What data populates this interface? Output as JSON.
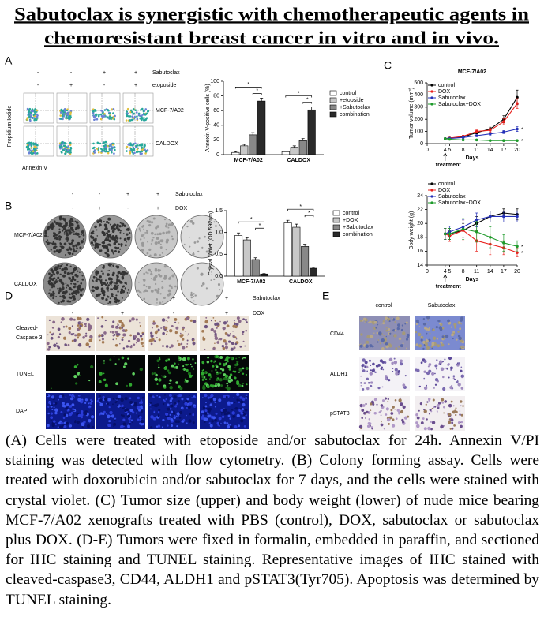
{
  "title_lines": [
    "Sabutoclax is synergistic with chemotherapeutic agents in",
    "chemoresistant breast cancer in vitro and in vivo."
  ],
  "panels": {
    "a": {
      "letter": "A",
      "rows": [
        {
          "name": "Sabutoclax",
          "signs": [
            "-",
            "-",
            "+",
            "+"
          ]
        },
        {
          "name": "etoposide",
          "signs": [
            "-",
            "+",
            "-",
            "+"
          ]
        }
      ],
      "row_labels": [
        "MCF-7/A02",
        "CALDOX"
      ],
      "y_axis": "Propidium Iodide",
      "x_axis": "Annexin V"
    },
    "b": {
      "letter": "B",
      "rows": [
        {
          "name": "Sabutoclax",
          "signs": [
            "-",
            "-",
            "+",
            "+"
          ]
        },
        {
          "name": "DOX",
          "signs": [
            "-",
            "+",
            "-",
            "+"
          ]
        }
      ],
      "row_labels": [
        "MCF-7/A02",
        "CALDOX"
      ]
    },
    "c": {
      "letter": "C"
    },
    "d": {
      "letter": "D",
      "rows": [
        {
          "name": "Sabutoclax",
          "signs": [
            "-",
            "-",
            "+",
            "+"
          ]
        },
        {
          "name": "DOX",
          "signs": [
            "-",
            "+",
            "-",
            "+"
          ]
        }
      ],
      "row_labels": [
        [
          "Cleaved-",
          "Caspase 3"
        ],
        [
          "TUNEL"
        ],
        [
          "DAPI"
        ]
      ]
    },
    "e": {
      "letter": "E",
      "column_labels": [
        "control",
        "+Sabutoclax"
      ],
      "row_labels": [
        "CD44",
        "ALDH1",
        "pSTAT3"
      ]
    }
  },
  "chart_data": [
    {
      "type": "bar",
      "ylabel": "Annexin V-positive cells (%)",
      "categories": [
        "MCF-7/A02",
        "CALDOX"
      ],
      "series": [
        {
          "name": "control",
          "color": "#ffffff",
          "values": [
            3,
            4
          ],
          "errors": [
            1,
            1
          ]
        },
        {
          "name": "+etopside",
          "color": "#c8c8c8",
          "values": [
            12,
            10
          ],
          "errors": [
            2,
            2
          ]
        },
        {
          "name": "+Sabutoclax",
          "color": "#888888",
          "values": [
            27,
            19
          ],
          "errors": [
            3,
            3
          ]
        },
        {
          "name": "combination",
          "color": "#2a2a2a",
          "values": [
            73,
            61
          ],
          "errors": [
            4,
            4
          ]
        }
      ],
      "ylim": [
        0,
        100
      ],
      "yticks": [
        0,
        20,
        40,
        60,
        80,
        100
      ],
      "significance": [
        [
          "*",
          "*"
        ],
        [
          "*",
          "*"
        ]
      ]
    },
    {
      "type": "bar",
      "ylabel": "Crystal Violet (OD 592nm)",
      "categories": [
        "MCF-7/A02",
        "CALDOX"
      ],
      "series": [
        {
          "name": "control",
          "color": "#ffffff",
          "values": [
            0.93,
            1.22
          ],
          "errors": [
            0.06,
            0.06
          ]
        },
        {
          "name": "+DOX",
          "color": "#c8c8c8",
          "values": [
            0.83,
            1.12
          ],
          "errors": [
            0.05,
            0.07
          ]
        },
        {
          "name": "+Sabutoclax",
          "color": "#888888",
          "values": [
            0.38,
            0.68
          ],
          "errors": [
            0.04,
            0.05
          ]
        },
        {
          "name": "combination",
          "color": "#2a2a2a",
          "values": [
            0.05,
            0.18
          ],
          "errors": [
            0.01,
            0.02
          ]
        }
      ],
      "ylim": [
        0,
        1.5
      ],
      "yticks": [
        {
          "value": 0,
          "label": "0.0"
        },
        {
          "value": 0.5,
          "label": "0.5"
        },
        {
          "value": 1,
          "label": "1.0"
        },
        {
          "value": 1.5,
          "label": "1.5"
        }
      ],
      "significance": [
        [
          "*",
          "*"
        ],
        [
          "*",
          "*"
        ]
      ]
    },
    {
      "type": "line",
      "title": "MCF-7/A02",
      "ylabel": "Tumor volume (mm³)",
      "xlabel": "Days",
      "annotation": "treatment",
      "x": [
        4,
        5,
        8,
        11,
        14,
        17,
        20
      ],
      "xlim": [
        0,
        20
      ],
      "xticks": [
        0,
        4,
        5,
        8,
        11,
        14,
        17,
        20
      ],
      "ylim": [
        0,
        500
      ],
      "yticks": [
        0,
        100,
        200,
        300,
        400,
        500
      ],
      "series": [
        {
          "name": "control",
          "color": "#000000",
          "values": [
            40,
            45,
            55,
            90,
            120,
            200,
            380
          ],
          "errors": [
            5,
            5,
            8,
            10,
            15,
            30,
            60
          ]
        },
        {
          "name": "DOX",
          "color": "#e8201c",
          "values": [
            40,
            45,
            60,
            100,
            110,
            180,
            330
          ],
          "errors": [
            5,
            5,
            8,
            12,
            15,
            25,
            40
          ]
        },
        {
          "name": "Sabutoclax",
          "color": "#2430b8",
          "values": [
            40,
            42,
            50,
            65,
            80,
            95,
            120
          ],
          "errors": [
            5,
            5,
            6,
            8,
            10,
            12,
            20
          ],
          "significance": "*"
        },
        {
          "name": "Sabutoclax+DOX",
          "color": "#1d9a2a",
          "values": [
            40,
            35,
            30,
            30,
            25,
            25,
            25
          ],
          "errors": [
            5,
            5,
            5,
            5,
            5,
            5,
            5
          ],
          "significance": "*"
        }
      ]
    },
    {
      "type": "line",
      "ylabel": "Body weight (g)",
      "xlabel": "Days",
      "annotation": "treatment",
      "x": [
        4,
        5,
        8,
        11,
        14,
        17,
        20
      ],
      "xlim": [
        0,
        20
      ],
      "xticks": [
        0,
        4,
        5,
        8,
        11,
        14,
        17,
        20
      ],
      "ylim": [
        14,
        24
      ],
      "yticks": [
        14,
        16,
        18,
        20,
        22,
        24
      ],
      "series": [
        {
          "name": "control",
          "color": "#000000",
          "values": [
            18.5,
            18.5,
            19,
            20,
            21,
            21.5,
            21.3
          ],
          "errors": [
            0.8,
            0.8,
            1,
            1,
            0.8,
            0.6,
            0.8
          ]
        },
        {
          "name": "DOX",
          "color": "#e8201c",
          "values": [
            18.5,
            18.2,
            19,
            17.5,
            17,
            16.5,
            15.8
          ],
          "errors": [
            0.8,
            0.8,
            1.5,
            1.5,
            1.5,
            1,
            0.6
          ],
          "significance": "*"
        },
        {
          "name": "Sabutoclax",
          "color": "#2430b8",
          "values": [
            18.5,
            18.8,
            19.5,
            20.5,
            21,
            21,
            21
          ],
          "errors": [
            0.8,
            0.8,
            1,
            1,
            0.8,
            0.8,
            0.8
          ]
        },
        {
          "name": "Sabutoclax+DOX",
          "color": "#1d9a2a",
          "values": [
            18.5,
            18.5,
            19.2,
            18.8,
            18,
            17.2,
            16.7
          ],
          "errors": [
            0.8,
            0.8,
            1.5,
            1.5,
            1.5,
            1.2,
            0.8
          ],
          "significance": "*"
        }
      ]
    }
  ],
  "caption": "(A) Cells were treated with etoposide and/or sabutoclax for 24h. Annexin V/PI staining was detected with flow cytometry. (B) Colony forming assay. Cells were treated with doxorubicin and/or sabutoclax for 7 days, and the cells were stained with crystal violet. (C) Tumor size (upper) and body weight (lower) of nude mice bearing MCF-7/A02 xenografts treated with PBS (control), DOX, sabutoclax or sabutoclax plus DOX. (D-E) Tumors were fixed in formalin, embedded in paraffin, and sectioned for IHC staining and TUNEL staining. Representative images of IHC stained with cleaved-caspase3, CD44, ALDH1 and pSTAT3(Tyr705). Apoptosis was determined by TUNEL staining."
}
